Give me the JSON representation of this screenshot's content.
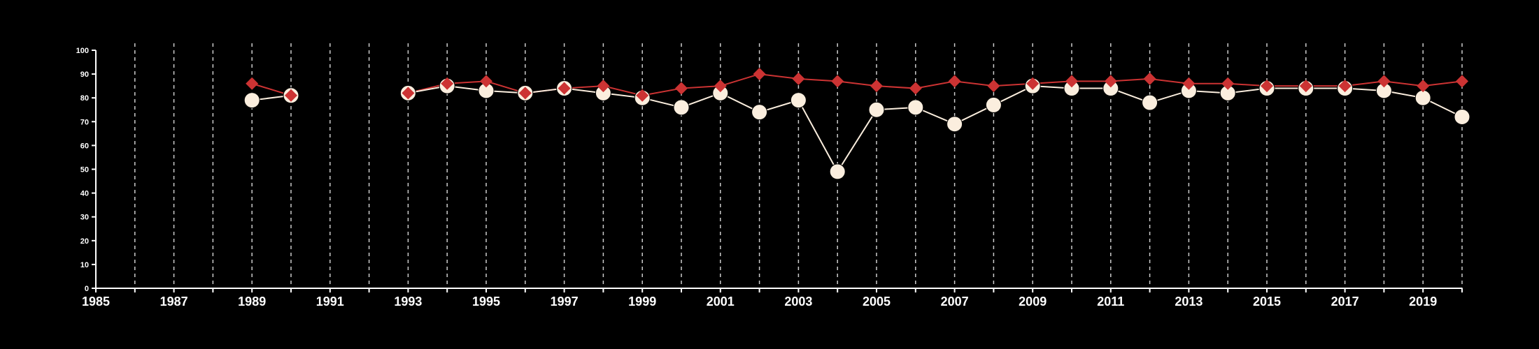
{
  "chart_data": {
    "type": "line",
    "title": "",
    "xlabel": "",
    "ylabel": "",
    "xlim": [
      1985,
      2020
    ],
    "ylim": [
      0,
      100
    ],
    "x_ticks": [
      "1985",
      "1987",
      "1989",
      "1991",
      "1993",
      "1995",
      "1997",
      "1999",
      "2001",
      "2003",
      "2005",
      "2007",
      "2009",
      "2011",
      "2013",
      "2015",
      "2017",
      "2019"
    ],
    "y_ticks": [
      "0",
      "10",
      "20",
      "30",
      "40",
      "50",
      "60",
      "70",
      "80",
      "90",
      "100"
    ],
    "grid": "vertical dashed lines at every year",
    "legend": "none",
    "series": [
      {
        "color": "#cc3333",
        "marker": "diamond",
        "x": [
          1989,
          1990,
          1993,
          1994,
          1995,
          1996,
          1997,
          1998,
          1999,
          2000,
          2001,
          2002,
          2003,
          2004,
          2005,
          2006,
          2007,
          2008,
          2009,
          2010,
          2011,
          2012,
          2013,
          2014,
          2015,
          2016,
          2017,
          2018,
          2019,
          2020
        ],
        "values": [
          86,
          81,
          82,
          86,
          87,
          82,
          84,
          85,
          81,
          84,
          85,
          90,
          88,
          87,
          85,
          84,
          87,
          85,
          86,
          87,
          87,
          88,
          86,
          86,
          85,
          85,
          85,
          87,
          85,
          87
        ]
      },
      {
        "color": "#fbeede",
        "marker": "circle",
        "x": [
          1989,
          1990,
          1993,
          1994,
          1995,
          1996,
          1997,
          1998,
          1999,
          2000,
          2001,
          2002,
          2003,
          2004,
          2005,
          2006,
          2007,
          2008,
          2009,
          2010,
          2011,
          2012,
          2013,
          2014,
          2015,
          2016,
          2017,
          2018,
          2019,
          2020
        ],
        "values": [
          79,
          81,
          82,
          85,
          83,
          82,
          84,
          82,
          80,
          76,
          82,
          74,
          79,
          49,
          75,
          76,
          69,
          77,
          85,
          84,
          84,
          78,
          83,
          82,
          84,
          84,
          84,
          83,
          80,
          72
        ]
      }
    ]
  }
}
